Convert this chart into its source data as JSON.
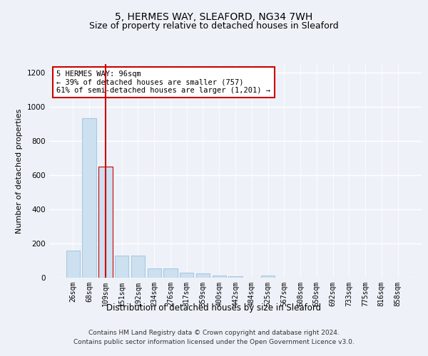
{
  "title": "5, HERMES WAY, SLEAFORD, NG34 7WH",
  "subtitle": "Size of property relative to detached houses in Sleaford",
  "xlabel": "Distribution of detached houses by size in Sleaford",
  "ylabel": "Number of detached properties",
  "bar_color": "#cce0f0",
  "bar_edge_color": "#aac8e0",
  "highlight_bar_index": 2,
  "highlight_bar_edge_color": "#cc0000",
  "annotation_box_text": "5 HERMES WAY: 96sqm\n← 39% of detached houses are smaller (757)\n61% of semi-detached houses are larger (1,201) →",
  "annotation_box_color": "#ffffff",
  "annotation_box_edge_color": "#cc0000",
  "categories": [
    "26sqm",
    "68sqm",
    "109sqm",
    "151sqm",
    "192sqm",
    "234sqm",
    "276sqm",
    "317sqm",
    "359sqm",
    "400sqm",
    "442sqm",
    "484sqm",
    "525sqm",
    "567sqm",
    "608sqm",
    "650sqm",
    "692sqm",
    "733sqm",
    "775sqm",
    "816sqm",
    "858sqm"
  ],
  "values": [
    160,
    935,
    648,
    130,
    128,
    55,
    55,
    30,
    27,
    12,
    10,
    0,
    12,
    0,
    0,
    0,
    0,
    0,
    0,
    0,
    0
  ],
  "ylim": [
    0,
    1250
  ],
  "yticks": [
    0,
    200,
    400,
    600,
    800,
    1000,
    1200
  ],
  "footer_line1": "Contains HM Land Registry data © Crown copyright and database right 2024.",
  "footer_line2": "Contains public sector information licensed under the Open Government Licence v3.0.",
  "bg_color": "#eef2f8",
  "grid_color": "#ffffff",
  "title_fontsize": 10,
  "subtitle_fontsize": 9,
  "tick_fontsize": 7,
  "ylabel_fontsize": 8,
  "xlabel_fontsize": 8.5,
  "footer_fontsize": 6.5
}
